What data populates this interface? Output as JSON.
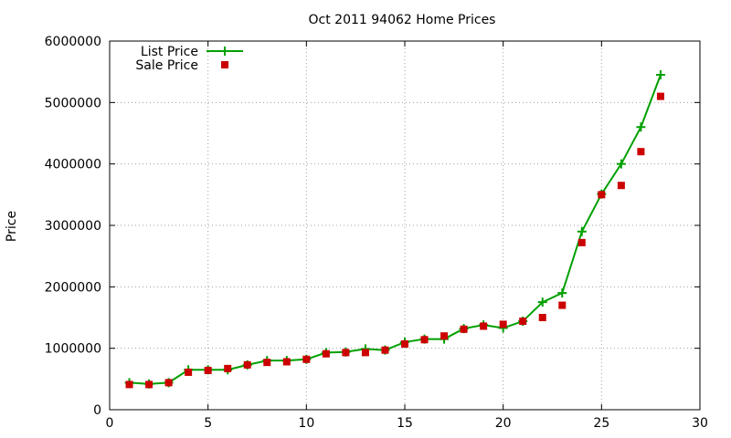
{
  "chart_data": {
    "type": "line",
    "title": "Oct 2011 94062 Home Prices",
    "xlabel": "",
    "ylabel": "Price",
    "xlim": [
      0,
      30
    ],
    "ylim": [
      0,
      6000000
    ],
    "x_ticks": [
      0,
      5,
      10,
      15,
      20,
      25,
      30
    ],
    "y_ticks": [
      0,
      1000000,
      2000000,
      3000000,
      4000000,
      5000000,
      6000000
    ],
    "grid": true,
    "legend_position": "top-left",
    "x": [
      1,
      2,
      3,
      4,
      5,
      6,
      7,
      8,
      9,
      10,
      11,
      12,
      13,
      14,
      15,
      16,
      17,
      18,
      19,
      20,
      21,
      22,
      23,
      24,
      25,
      26,
      27,
      28
    ],
    "series": [
      {
        "name": "List Price",
        "style": "line+plus",
        "color": "#00a000",
        "values": [
          440000,
          420000,
          440000,
          650000,
          650000,
          650000,
          730000,
          800000,
          800000,
          820000,
          930000,
          940000,
          990000,
          970000,
          1100000,
          1150000,
          1150000,
          1320000,
          1380000,
          1330000,
          1440000,
          1750000,
          1900000,
          2900000,
          3510000,
          4000000,
          4600000,
          5450000
        ]
      },
      {
        "name": "Sale Price",
        "style": "square",
        "color": "#cc0000",
        "values": [
          410000,
          410000,
          440000,
          610000,
          640000,
          670000,
          730000,
          770000,
          780000,
          820000,
          910000,
          930000,
          930000,
          970000,
          1070000,
          1140000,
          1200000,
          1310000,
          1360000,
          1390000,
          1440000,
          1500000,
          1700000,
          2720000,
          3500000,
          3650000,
          4200000,
          5100000
        ]
      }
    ]
  }
}
